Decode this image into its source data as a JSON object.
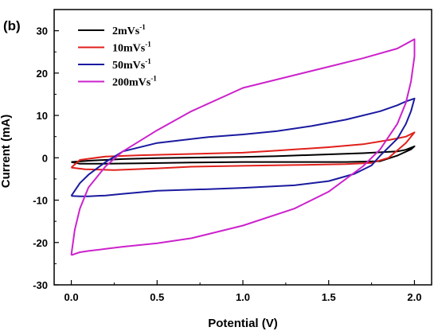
{
  "panel_label": "(b)",
  "chart_data": {
    "type": "line",
    "title": "",
    "xlabel": "Potential (V)",
    "ylabel": "Current (mA)",
    "xlim": [
      -0.1,
      2.1
    ],
    "ylim": [
      -30,
      35
    ],
    "xticks": [
      0.0,
      0.5,
      1.0,
      1.5,
      2.0
    ],
    "xtick_labels": [
      "0.0",
      "0.5",
      "1.0",
      "1.5",
      "2.0"
    ],
    "yticks": [
      -30,
      -20,
      -10,
      0,
      10,
      20,
      30
    ],
    "ytick_labels": [
      "-30",
      "-20",
      "-10",
      "0",
      "10",
      "20",
      "30"
    ],
    "grid": false,
    "legend_position": "top-left",
    "series": [
      {
        "name": "2mVs-1",
        "name_base": "2mVs",
        "name_sup": "-1",
        "color": "#000000",
        "x": [
          0.0,
          0.1,
          0.3,
          0.5,
          0.8,
          1.0,
          1.2,
          1.5,
          1.7,
          1.9,
          1.95,
          2.0,
          1.98,
          1.9,
          1.8,
          1.6,
          1.3,
          1.0,
          0.7,
          0.4,
          0.2,
          0.05,
          0.0
        ],
        "y": [
          -1.0,
          -0.7,
          -0.3,
          -0.1,
          0.1,
          0.2,
          0.4,
          0.8,
          1.1,
          1.5,
          1.9,
          2.7,
          2.0,
          0.5,
          -0.8,
          -1.0,
          -1.0,
          -1.0,
          -1.1,
          -1.3,
          -1.4,
          -1.4,
          -1.0
        ]
      },
      {
        "name": "10mVs-1",
        "name_base": "10mVs",
        "name_sup": "-1",
        "color": "#e0201b",
        "x": [
          0.0,
          0.05,
          0.2,
          0.4,
          0.7,
          1.0,
          1.2,
          1.5,
          1.7,
          1.85,
          1.95,
          2.0,
          1.95,
          1.85,
          1.75,
          1.6,
          1.3,
          1.0,
          0.7,
          0.5,
          0.25,
          0.08,
          0.0
        ],
        "y": [
          -2.3,
          -0.5,
          0.3,
          0.6,
          0.9,
          1.2,
          1.7,
          2.5,
          3.2,
          4.2,
          5.0,
          6.0,
          3.5,
          0.0,
          -1.2,
          -1.5,
          -1.7,
          -1.9,
          -2.1,
          -2.5,
          -2.9,
          -2.7,
          -2.3
        ]
      },
      {
        "name": "50mVs-1",
        "name_base": "50mVs",
        "name_sup": "-1",
        "color": "#1a1aa0",
        "x": [
          0.0,
          0.05,
          0.1,
          0.2,
          0.3,
          0.5,
          0.8,
          1.0,
          1.2,
          1.4,
          1.6,
          1.8,
          1.9,
          1.95,
          2.0,
          1.98,
          1.95,
          1.9,
          1.8,
          1.75,
          1.65,
          1.5,
          1.3,
          1.0,
          0.8,
          0.5,
          0.3,
          0.2,
          0.1,
          0.05,
          0.0
        ],
        "y": [
          -9.0,
          -6.0,
          -4.0,
          -1.0,
          1.5,
          3.5,
          4.9,
          5.5,
          6.3,
          7.5,
          9.0,
          11.0,
          12.4,
          13.3,
          14.0,
          11.0,
          8.0,
          4.5,
          0.5,
          -1.8,
          -3.8,
          -5.5,
          -6.5,
          -7.1,
          -7.4,
          -7.8,
          -8.5,
          -8.9,
          -9.1,
          -9.1,
          -9.0
        ]
      },
      {
        "name": "200mVs-1",
        "name_base": "200mVs",
        "name_sup": "-1",
        "color": "#cc22cc",
        "x": [
          0.0,
          0.02,
          0.05,
          0.1,
          0.2,
          0.3,
          0.5,
          0.7,
          1.0,
          1.3,
          1.5,
          1.7,
          1.9,
          2.0,
          2.0,
          1.98,
          1.95,
          1.9,
          1.8,
          1.7,
          1.5,
          1.3,
          1.0,
          0.7,
          0.5,
          0.3,
          0.2,
          0.1,
          0.05,
          0.0
        ],
        "y": [
          -23.0,
          -17.0,
          -12.0,
          -7.0,
          -2.0,
          1.5,
          6.5,
          11.0,
          16.5,
          19.5,
          21.5,
          23.5,
          25.8,
          28.0,
          24.0,
          18.0,
          13.0,
          8.0,
          2.0,
          -2.0,
          -8.0,
          -12.0,
          -16.0,
          -19.0,
          -20.2,
          -21.0,
          -21.5,
          -22.0,
          -22.3,
          -23.0
        ]
      }
    ]
  }
}
